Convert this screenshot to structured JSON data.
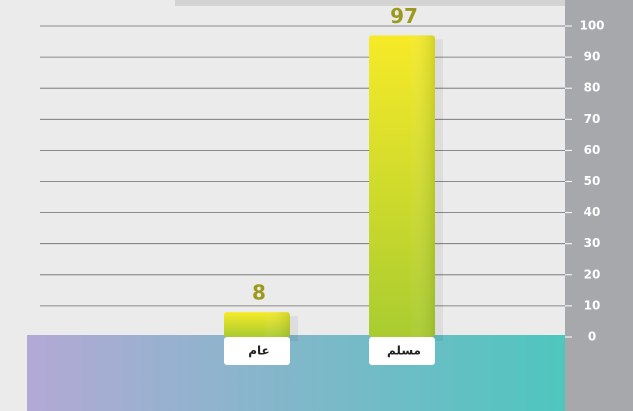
{
  "chart_data": {
    "type": "bar",
    "categories": [
      "عام",
      "مسلم"
    ],
    "values": [
      8,
      97
    ],
    "color": "#c9dc2a",
    "ylim": [
      0,
      100
    ],
    "yticks": [
      0,
      10,
      20,
      30,
      40,
      50,
      60,
      70,
      80,
      90,
      100
    ],
    "grid": true
  }
}
